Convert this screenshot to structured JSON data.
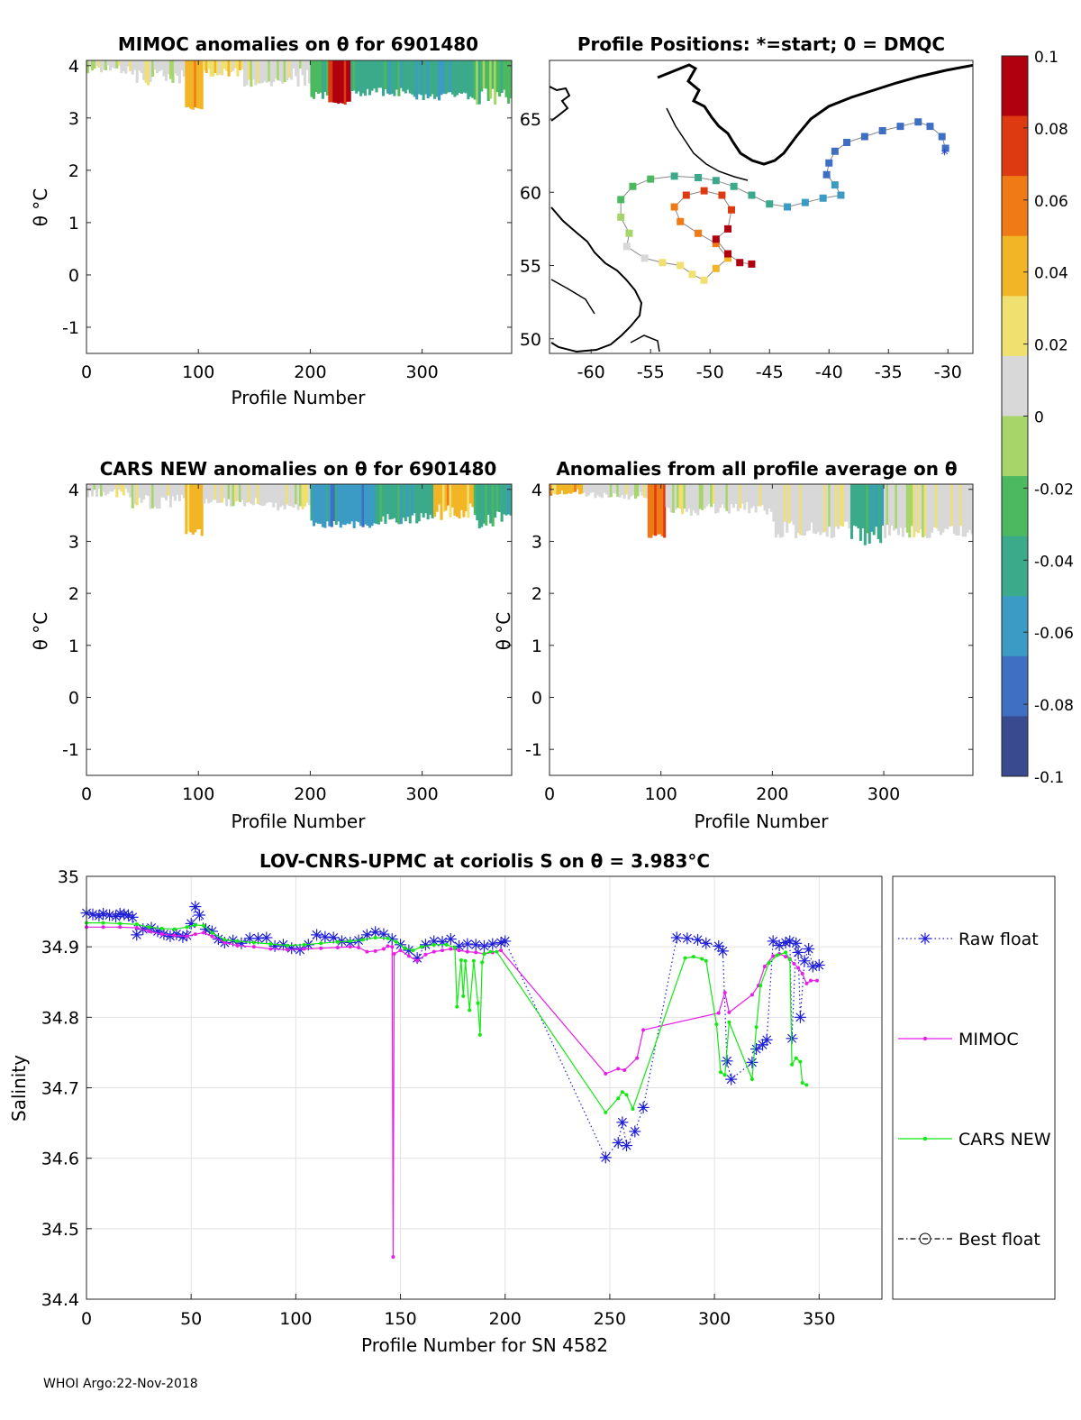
{
  "footer": "WHOI Argo:22-Nov-2018",
  "panels": {
    "mimoc": {
      "title": "MIMOC anomalies on θ  for 6901480",
      "ylabel": "θ °C",
      "xlabel": "Profile Number",
      "xticks": [
        "0",
        "100",
        "200",
        "300"
      ],
      "yticks": [
        "4",
        "3",
        "2",
        "1",
        "0",
        "-1"
      ]
    },
    "map": {
      "title": "Profile Positions: *=start; 0 = DMQC",
      "xticks": [
        "-60",
        "-55",
        "-50",
        "-45",
        "-40",
        "-35",
        "-30"
      ],
      "yticks": [
        "65",
        "60",
        "55",
        "50"
      ]
    },
    "cars": {
      "title": "CARS NEW anomalies on θ for 6901480",
      "ylabel": "θ °C",
      "xlabel": "Profile Number",
      "xticks": [
        "0",
        "100",
        "200",
        "300"
      ],
      "yticks": [
        "4",
        "3",
        "2",
        "1",
        "0",
        "-1"
      ]
    },
    "avg": {
      "title": "Anomalies from all profile average on θ",
      "ylabel": "θ °C",
      "xlabel": "Profile Number",
      "xticks": [
        "0",
        "100",
        "200",
        "300"
      ],
      "yticks": [
        "4",
        "3",
        "2",
        "1",
        "0",
        "-1"
      ]
    }
  },
  "colorbar": {
    "ticks": [
      "0.1",
      "0.08",
      "0.06",
      "0.04",
      "0.02",
      "0",
      "-0.02",
      "-0.04",
      "-0.06",
      "-0.08",
      "-0.1"
    ],
    "colors": [
      "#3a4a8f",
      "#3f6fc2",
      "#3c9bc4",
      "#3aaa8a",
      "#4cb860",
      "#a7d56a",
      "#d8d8d8",
      "#f0e070",
      "#f2b526",
      "#ef7a16",
      "#dd3a12",
      "#b00010"
    ]
  },
  "chart_data": {
    "type": "line",
    "title": "LOV-CNRS-UPMC at coriolis S on θ = 3.983°C",
    "xlabel": "Profile Number for SN 4582",
    "ylabel": "Salinity",
    "xlim": [
      0,
      380
    ],
    "ylim": [
      34.4,
      35.0
    ],
    "xticks": [
      "0",
      "50",
      "100",
      "150",
      "200",
      "250",
      "300",
      "350"
    ],
    "yticks": [
      "35",
      "34.9",
      "34.8",
      "34.7",
      "34.6",
      "34.5",
      "34.4"
    ],
    "grid": true,
    "legend_position": "right",
    "series": [
      {
        "name": "Raw float",
        "color": "#1f1fd6",
        "style": "dotted-star",
        "points": [
          [
            0,
            34.948
          ],
          [
            3,
            34.946
          ],
          [
            6,
            34.944
          ],
          [
            8,
            34.947
          ],
          [
            11,
            34.945
          ],
          [
            14,
            34.943
          ],
          [
            16,
            34.947
          ],
          [
            18,
            34.946
          ],
          [
            20,
            34.945
          ],
          [
            22,
            34.942
          ],
          [
            24,
            34.917
          ],
          [
            27,
            34.925
          ],
          [
            31,
            34.927
          ],
          [
            34,
            34.922
          ],
          [
            37,
            34.918
          ],
          [
            40,
            34.915
          ],
          [
            43,
            34.918
          ],
          [
            46,
            34.914
          ],
          [
            48,
            34.916
          ],
          [
            50,
            34.933
          ],
          [
            52,
            34.957
          ],
          [
            54,
            34.945
          ],
          [
            57,
            34.925
          ],
          [
            60,
            34.922
          ],
          [
            63,
            34.911
          ],
          [
            66,
            34.906
          ],
          [
            70,
            34.909
          ],
          [
            74,
            34.905
          ],
          [
            78,
            34.912
          ],
          [
            82,
            34.912
          ],
          [
            86,
            34.913
          ],
          [
            90,
            34.901
          ],
          [
            94,
            34.903
          ],
          [
            98,
            34.898
          ],
          [
            102,
            34.896
          ],
          [
            106,
            34.903
          ],
          [
            110,
            34.917
          ],
          [
            114,
            34.914
          ],
          [
            118,
            34.913
          ],
          [
            122,
            34.908
          ],
          [
            126,
            34.906
          ],
          [
            130,
            34.909
          ],
          [
            134,
            34.917
          ],
          [
            138,
            34.921
          ],
          [
            142,
            34.918
          ],
          [
            146,
            34.911
          ],
          [
            150,
            34.903
          ],
          [
            154,
            34.895
          ],
          [
            158,
            34.884
          ],
          [
            162,
            34.903
          ],
          [
            166,
            34.908
          ],
          [
            170,
            34.907
          ],
          [
            174,
            34.911
          ],
          [
            178,
            34.901
          ],
          [
            182,
            34.904
          ],
          [
            186,
            34.903
          ],
          [
            190,
            34.901
          ],
          [
            194,
            34.904
          ],
          [
            198,
            34.906
          ],
          [
            200,
            34.908
          ],
          [
            248,
            34.601
          ],
          [
            254,
            34.622
          ],
          [
            256,
            34.651
          ],
          [
            258,
            34.618
          ],
          [
            262,
            34.638
          ],
          [
            266,
            34.672
          ],
          [
            282,
            34.913
          ],
          [
            287,
            34.912
          ],
          [
            292,
            34.91
          ],
          [
            296,
            34.905
          ],
          [
            302,
            34.901
          ],
          [
            304,
            34.894
          ],
          [
            306,
            34.738
          ],
          [
            308,
            34.712
          ],
          [
            318,
            34.736
          ],
          [
            320,
            34.755
          ],
          [
            323,
            34.761
          ],
          [
            325,
            34.768
          ],
          [
            328,
            34.908
          ],
          [
            331,
            34.902
          ],
          [
            334,
            34.906
          ],
          [
            336,
            34.908
          ],
          [
            337,
            34.77
          ],
          [
            339,
            34.905
          ],
          [
            340,
            34.892
          ],
          [
            341,
            34.8
          ],
          [
            343,
            34.88
          ],
          [
            345,
            34.897
          ],
          [
            347,
            34.872
          ],
          [
            350,
            34.874
          ]
        ]
      },
      {
        "name": "MIMOC",
        "color": "#e81ee8",
        "style": "solid-dot",
        "points": [
          [
            0,
            34.928
          ],
          [
            8,
            34.928
          ],
          [
            16,
            34.928
          ],
          [
            24,
            34.927
          ],
          [
            30,
            34.922
          ],
          [
            36,
            34.918
          ],
          [
            42,
            34.916
          ],
          [
            48,
            34.915
          ],
          [
            52,
            34.918
          ],
          [
            56,
            34.92
          ],
          [
            60,
            34.915
          ],
          [
            66,
            34.906
          ],
          [
            72,
            34.902
          ],
          [
            80,
            34.9
          ],
          [
            88,
            34.897
          ],
          [
            96,
            34.896
          ],
          [
            104,
            34.897
          ],
          [
            112,
            34.898
          ],
          [
            120,
            34.899
          ],
          [
            126,
            34.9
          ],
          [
            130,
            34.899
          ],
          [
            134,
            34.893
          ],
          [
            138,
            34.894
          ],
          [
            142,
            34.897
          ],
          [
            144,
            34.901
          ],
          [
            146,
            34.9
          ],
          [
            146.5,
            34.46
          ],
          [
            147,
            34.89
          ],
          [
            150,
            34.895
          ],
          [
            154,
            34.887
          ],
          [
            158,
            34.88
          ],
          [
            162,
            34.889
          ],
          [
            166,
            34.893
          ],
          [
            170,
            34.895
          ],
          [
            174,
            34.897
          ],
          [
            178,
            34.895
          ],
          [
            182,
            34.893
          ],
          [
            186,
            34.892
          ],
          [
            190,
            34.89
          ],
          [
            194,
            34.892
          ],
          [
            198,
            34.895
          ],
          [
            248,
            34.72
          ],
          [
            254,
            34.727
          ],
          [
            257,
            34.725
          ],
          [
            263,
            34.742
          ],
          [
            266,
            34.782
          ],
          [
            302,
            34.806
          ],
          [
            305,
            34.835
          ],
          [
            307,
            34.807
          ],
          [
            318,
            34.832
          ],
          [
            321,
            34.845
          ],
          [
            324,
            34.872
          ],
          [
            328,
            34.887
          ],
          [
            331,
            34.89
          ],
          [
            334,
            34.886
          ],
          [
            336,
            34.883
          ],
          [
            338,
            34.876
          ],
          [
            340,
            34.87
          ],
          [
            342,
            34.862
          ],
          [
            344,
            34.848
          ],
          [
            346,
            34.852
          ],
          [
            349,
            34.852
          ]
        ]
      },
      {
        "name": "CARS NEW",
        "color": "#12e812",
        "style": "solid-dot",
        "points": [
          [
            0,
            34.934
          ],
          [
            8,
            34.934
          ],
          [
            16,
            34.933
          ],
          [
            24,
            34.932
          ],
          [
            30,
            34.928
          ],
          [
            36,
            34.926
          ],
          [
            42,
            34.925
          ],
          [
            48,
            34.928
          ],
          [
            52,
            34.931
          ],
          [
            56,
            34.93
          ],
          [
            60,
            34.92
          ],
          [
            66,
            34.91
          ],
          [
            72,
            34.908
          ],
          [
            80,
            34.906
          ],
          [
            88,
            34.904
          ],
          [
            96,
            34.902
          ],
          [
            104,
            34.903
          ],
          [
            112,
            34.905
          ],
          [
            120,
            34.907
          ],
          [
            126,
            34.908
          ],
          [
            132,
            34.91
          ],
          [
            138,
            34.913
          ],
          [
            144,
            34.912
          ],
          [
            148,
            34.907
          ],
          [
            152,
            34.898
          ],
          [
            156,
            34.895
          ],
          [
            160,
            34.9
          ],
          [
            166,
            34.903
          ],
          [
            172,
            34.903
          ],
          [
            176,
            34.899
          ],
          [
            177,
            34.815
          ],
          [
            179,
            34.881
          ],
          [
            180,
            34.83
          ],
          [
            181,
            34.88
          ],
          [
            183,
            34.81
          ],
          [
            185,
            34.88
          ],
          [
            187,
            34.82
          ],
          [
            188,
            34.775
          ],
          [
            189,
            34.878
          ],
          [
            190,
            34.89
          ],
          [
            193,
            34.893
          ],
          [
            196,
            34.893
          ],
          [
            248,
            34.665
          ],
          [
            254,
            34.685
          ],
          [
            256,
            34.694
          ],
          [
            258,
            34.69
          ],
          [
            261,
            34.67
          ],
          [
            286,
            34.884
          ],
          [
            290,
            34.886
          ],
          [
            294,
            34.883
          ],
          [
            296,
            34.88
          ],
          [
            301,
            34.79
          ],
          [
            303,
            34.722
          ],
          [
            305,
            34.718
          ],
          [
            307,
            34.793
          ],
          [
            318,
            34.712
          ],
          [
            320,
            34.786
          ],
          [
            322,
            34.845
          ],
          [
            326,
            34.877
          ],
          [
            330,
            34.888
          ],
          [
            334,
            34.892
          ],
          [
            336,
            34.882
          ],
          [
            337,
            34.733
          ],
          [
            339,
            34.742
          ],
          [
            341,
            34.737
          ],
          [
            342,
            34.707
          ],
          [
            344,
            34.704
          ]
        ]
      },
      {
        "name": "Best float",
        "color": "#000000",
        "style": "dashdot-circle",
        "points": []
      }
    ]
  }
}
